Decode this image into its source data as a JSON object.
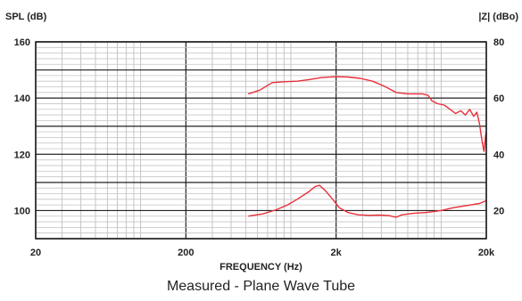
{
  "chart_data": {
    "type": "line",
    "caption": "Measured - Plane Wave Tube",
    "xlabel": "FREQUENCY (Hz)",
    "ylabel_left": "SPL (dB)",
    "ylabel_right": "|Z| (dBo)",
    "x_scale": "log",
    "xlim": [
      20,
      20000
    ],
    "ylim_left": [
      90,
      160
    ],
    "ylim_right": [
      10,
      80
    ],
    "x_ticks": [
      {
        "value": 20,
        "label": "20"
      },
      {
        "value": 200,
        "label": "200"
      },
      {
        "value": 2000,
        "label": "2k"
      },
      {
        "value": 20000,
        "label": "20k"
      }
    ],
    "y_ticks_left": [
      {
        "value": 160,
        "label": "160"
      },
      {
        "value": 140,
        "label": "140"
      },
      {
        "value": 120,
        "label": "120"
      },
      {
        "value": 100,
        "label": "100"
      }
    ],
    "y_ticks_right": [
      {
        "value": 80,
        "label": "80"
      },
      {
        "value": 60,
        "label": "60"
      },
      {
        "value": 40,
        "label": "40"
      },
      {
        "value": 20,
        "label": "20"
      }
    ],
    "grid": true,
    "series": [
      {
        "axis": "left",
        "color": "#e8303a",
        "points": [
          [
            520,
            141.5
          ],
          [
            620,
            142.8
          ],
          [
            750,
            145.5
          ],
          [
            900,
            145.8
          ],
          [
            1100,
            146.0
          ],
          [
            1300,
            146.5
          ],
          [
            1600,
            147.3
          ],
          [
            2000,
            147.6
          ],
          [
            2400,
            147.5
          ],
          [
            2900,
            147.0
          ],
          [
            3500,
            146.0
          ],
          [
            4200,
            144.2
          ],
          [
            5000,
            142.0
          ],
          [
            6000,
            141.5
          ],
          [
            7500,
            141.5
          ],
          [
            8200,
            141.0
          ],
          [
            8700,
            139.0
          ],
          [
            9500,
            138.0
          ],
          [
            10500,
            137.5
          ],
          [
            11500,
            136.0
          ],
          [
            12500,
            134.5
          ],
          [
            13500,
            135.5
          ],
          [
            14500,
            134.0
          ],
          [
            15500,
            136.0
          ],
          [
            16500,
            133.5
          ],
          [
            17300,
            135.0
          ],
          [
            18000,
            131.0
          ],
          [
            18700,
            125.0
          ],
          [
            19300,
            121.0
          ],
          [
            19800,
            127.0
          ],
          [
            20000,
            128.0
          ]
        ]
      },
      {
        "axis": "left",
        "color": "#e8303a",
        "points": [
          [
            520,
            98.0
          ],
          [
            650,
            98.8
          ],
          [
            800,
            100.3
          ],
          [
            950,
            102.0
          ],
          [
            1100,
            104.0
          ],
          [
            1300,
            106.5
          ],
          [
            1450,
            108.5
          ],
          [
            1550,
            109.0
          ],
          [
            1700,
            107.0
          ],
          [
            1900,
            104.0
          ],
          [
            2100,
            101.0
          ],
          [
            2400,
            99.3
          ],
          [
            2800,
            98.5
          ],
          [
            3300,
            98.3
          ],
          [
            3900,
            98.4
          ],
          [
            4500,
            98.2
          ],
          [
            5000,
            97.6
          ],
          [
            5500,
            98.5
          ],
          [
            6500,
            99.0
          ],
          [
            8000,
            99.3
          ],
          [
            10000,
            100.0
          ],
          [
            12000,
            101.0
          ],
          [
            15000,
            101.8
          ],
          [
            18000,
            102.5
          ],
          [
            20000,
            103.5
          ]
        ]
      }
    ]
  }
}
